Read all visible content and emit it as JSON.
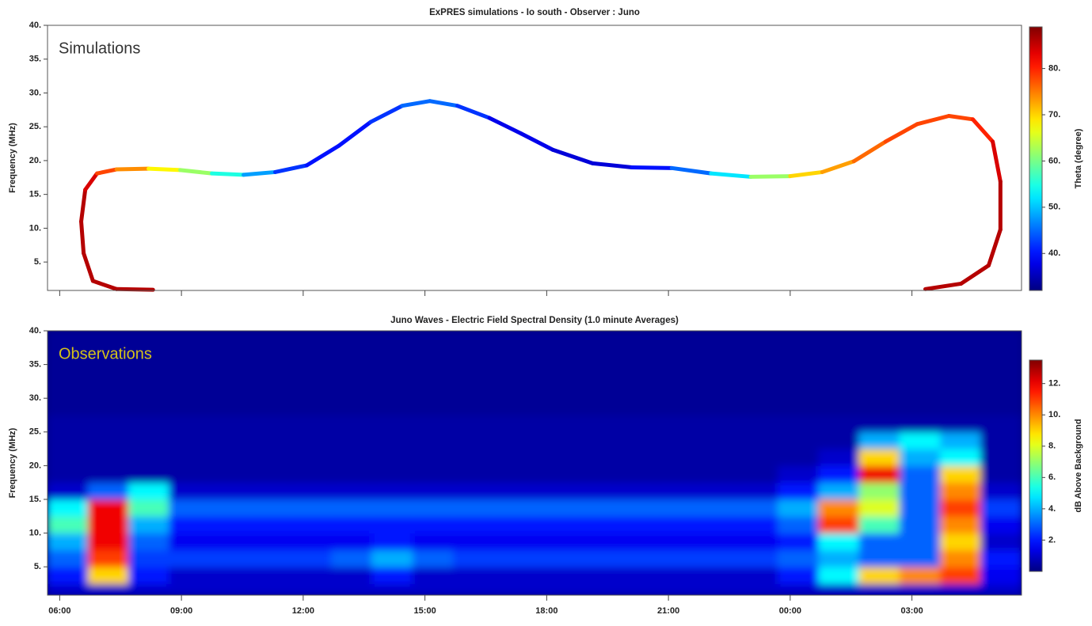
{
  "chart_data": [
    {
      "type": "curve",
      "title": "ExPRES simulations - Io south - Observer : Juno",
      "annotation": "Simulations",
      "ylabel": "Frequency (MHz)",
      "colormap": "jet",
      "xlim": [
        5.7,
        29.7
      ],
      "xticks": [
        6,
        9,
        12,
        15,
        18,
        21,
        24,
        27
      ],
      "ylim": [
        0.8,
        40
      ],
      "yticks": [
        {
          "value": 5,
          "label": "5."
        },
        {
          "value": 10,
          "label": "10."
        },
        {
          "value": 15,
          "label": "15."
        },
        {
          "value": 20,
          "label": "20."
        },
        {
          "value": 25,
          "label": "25."
        },
        {
          "value": 30,
          "label": "30."
        },
        {
          "value": 35,
          "label": "35."
        },
        {
          "value": 40,
          "label": "40."
        }
      ],
      "x": [
        8.3,
        7.4,
        6.82,
        6.59,
        6.53,
        6.63,
        6.92,
        7.4,
        8.19,
        8.97,
        9.75,
        10.53,
        11.31,
        12.09,
        12.88,
        13.66,
        14.44,
        15.12,
        15.8,
        16.59,
        17.37,
        18.15,
        19.13,
        20.1,
        21.08,
        22.05,
        23.03,
        24.0,
        24.79,
        25.57,
        26.35,
        27.13,
        27.91,
        28.5,
        28.99,
        29.18,
        29.18,
        28.89,
        28.21,
        27.33
      ],
      "y": [
        0.9,
        1.0,
        2.2,
        6.3,
        11,
        15.7,
        18.1,
        18.7,
        18.8,
        18.6,
        18.1,
        17.9,
        18.3,
        19.3,
        22.2,
        25.7,
        28.1,
        28.8,
        28.1,
        26.3,
        24,
        21.6,
        19.6,
        19,
        18.9,
        18.1,
        17.6,
        17.7,
        18.3,
        19.9,
        22.8,
        25.4,
        26.6,
        26.1,
        22.8,
        16.9,
        9.8,
        4.5,
        1.8,
        1.0
      ],
      "theta": [
        86,
        86,
        86,
        86,
        86,
        84,
        78,
        74,
        68,
        62,
        55,
        48,
        42,
        40,
        40,
        42,
        45,
        45,
        42,
        38,
        38,
        37,
        37,
        40,
        45,
        52,
        62,
        70,
        73,
        76,
        78,
        78,
        78,
        80,
        84,
        86,
        86,
        86,
        86,
        86
      ],
      "colorbar": {
        "label": "Theta (degree)",
        "zlim": [
          32,
          89
        ],
        "zticks": [
          {
            "value": 40,
            "label": "40."
          },
          {
            "value": 50,
            "label": "50."
          },
          {
            "value": 60,
            "label": "60."
          },
          {
            "value": 70,
            "label": "70."
          },
          {
            "value": 80,
            "label": "80."
          }
        ]
      }
    },
    {
      "type": "spectrogram",
      "title": "Juno Waves - Electric Field Spectral Density (1.0 minute Averages)",
      "annotation": "Observations",
      "ylabel": "Frequency (MHz)",
      "colormap": "jet",
      "xlim": [
        5.7,
        29.7
      ],
      "xticks": [
        {
          "value": 6,
          "label": "06:00"
        },
        {
          "value": 9,
          "label": "09:00"
        },
        {
          "value": 12,
          "label": "12:00"
        },
        {
          "value": 15,
          "label": "15:00"
        },
        {
          "value": 18,
          "label": "18:00"
        },
        {
          "value": 21,
          "label": "21:00"
        },
        {
          "value": 24,
          "label": "00:00"
        },
        {
          "value": 27,
          "label": "03:00"
        }
      ],
      "ylim": [
        0.8,
        40
      ],
      "yticks": [
        {
          "value": 5,
          "label": "5."
        },
        {
          "value": 10,
          "label": "10."
        },
        {
          "value": 15,
          "label": "15."
        },
        {
          "value": 20,
          "label": "20."
        },
        {
          "value": 25,
          "label": "25."
        },
        {
          "value": 30,
          "label": "30."
        },
        {
          "value": 35,
          "label": "35."
        },
        {
          "value": 40,
          "label": "40."
        }
      ],
      "xbins": [
        5.7,
        6.7,
        7.7,
        8.7,
        9.7,
        10.7,
        11.7,
        12.7,
        13.7,
        14.7,
        15.7,
        16.7,
        17.7,
        18.7,
        19.7,
        20.7,
        21.7,
        22.7,
        23.7,
        24.7,
        25.7,
        26.7,
        27.7,
        28.7,
        29.7
      ],
      "ybins": [
        0.8,
        2.5,
        5,
        7.5,
        10,
        12.5,
        15,
        17.5,
        20,
        22.5,
        25,
        27.5,
        30,
        32.5,
        35,
        37.5,
        40
      ],
      "z": [
        [
          1,
          1,
          1,
          1,
          1,
          1,
          1,
          1,
          1,
          1,
          1,
          1,
          1,
          1,
          1,
          1,
          1,
          1,
          1,
          1,
          1,
          1,
          1,
          1
        ],
        [
          2,
          9,
          2,
          1,
          1,
          1,
          1,
          1,
          2,
          1,
          1,
          1,
          1,
          1,
          1,
          1,
          1,
          1,
          2,
          5,
          9,
          10,
          11,
          1.5
        ],
        [
          3,
          11,
          2.5,
          2.5,
          2.5,
          2.5,
          2.5,
          3,
          4,
          3,
          2.5,
          2.5,
          2.5,
          2.5,
          2.5,
          2.5,
          2.5,
          2.5,
          3,
          4,
          3,
          3,
          10,
          2
        ],
        [
          4,
          12,
          3,
          1.5,
          1.5,
          1.5,
          1.5,
          1.5,
          2,
          1.5,
          1.5,
          1.5,
          1.5,
          1.5,
          1.5,
          1.5,
          1.5,
          1.5,
          2,
          5,
          3,
          3,
          9,
          1
        ],
        [
          6,
          12,
          4,
          2,
          2,
          2,
          2,
          2,
          2,
          2,
          2,
          2,
          2,
          2,
          2,
          2,
          2,
          2,
          3,
          11,
          6,
          3,
          10,
          1.5
        ],
        [
          5,
          12,
          6,
          3,
          3,
          3,
          3,
          3,
          3,
          3,
          3,
          3,
          3,
          3,
          3,
          3,
          3,
          3,
          4,
          10,
          8,
          3,
          11,
          2.5
        ],
        [
          1,
          3,
          5,
          1,
          1,
          1,
          1,
          1,
          1,
          1,
          1,
          1,
          1,
          1,
          1,
          1,
          1,
          1,
          2,
          4,
          7,
          3,
          10,
          1
        ],
        [
          0.5,
          0.5,
          0.5,
          0.5,
          0.5,
          0.5,
          0.5,
          0.5,
          0.5,
          0.5,
          0.5,
          0.5,
          0.5,
          0.5,
          0.5,
          0.5,
          0.5,
          0.5,
          1,
          2,
          12,
          3,
          9,
          0.5
        ],
        [
          0.5,
          0.5,
          0.5,
          0.5,
          0.5,
          0.5,
          0.5,
          0.5,
          0.5,
          0.5,
          0.5,
          0.5,
          0.5,
          0.5,
          0.5,
          0.5,
          0.5,
          0.5,
          0.5,
          1,
          9,
          4,
          5,
          0.5
        ],
        [
          0.5,
          0.5,
          0.5,
          0.5,
          0.5,
          0.5,
          0.5,
          0.5,
          0.5,
          0.5,
          0.5,
          0.5,
          0.5,
          0.5,
          0.5,
          0.5,
          0.5,
          0.5,
          0.5,
          0.5,
          4,
          5,
          4,
          0.5
        ],
        [
          0.5,
          0.5,
          0.5,
          0.5,
          0.5,
          0.5,
          0.5,
          0.5,
          0.5,
          0.5,
          0.5,
          0.5,
          0.5,
          0.5,
          0.5,
          0.5,
          0.5,
          0.5,
          0.5,
          0.5,
          0.5,
          0.5,
          0.5,
          0.5
        ],
        [
          0.3,
          0.3,
          0.3,
          0.3,
          0.3,
          0.3,
          0.3,
          0.3,
          0.3,
          0.3,
          0.3,
          0.3,
          0.3,
          0.3,
          0.3,
          0.3,
          0.3,
          0.3,
          0.3,
          0.3,
          0.3,
          0.3,
          0.3,
          0.3
        ],
        [
          0.3,
          0.3,
          0.3,
          0.3,
          0.3,
          0.3,
          0.3,
          0.3,
          0.3,
          0.3,
          0.3,
          0.3,
          0.3,
          0.3,
          0.3,
          0.3,
          0.3,
          0.3,
          0.3,
          0.3,
          0.3,
          0.3,
          0.3,
          0.3
        ],
        [
          0.3,
          0.3,
          0.3,
          0.3,
          0.3,
          0.3,
          0.3,
          0.3,
          0.3,
          0.3,
          0.3,
          0.3,
          0.3,
          0.3,
          0.3,
          0.3,
          0.3,
          0.3,
          0.3,
          0.3,
          0.3,
          0.3,
          0.3,
          0.3
        ],
        [
          0.3,
          0.3,
          0.3,
          0.3,
          0.3,
          0.3,
          0.3,
          0.3,
          0.3,
          0.3,
          0.3,
          0.3,
          0.3,
          0.3,
          0.3,
          0.3,
          0.3,
          0.3,
          0.3,
          0.3,
          0.3,
          0.3,
          0.3,
          0.3
        ],
        [
          0.3,
          0.3,
          0.3,
          0.3,
          0.3,
          0.3,
          0.3,
          0.3,
          0.3,
          0.3,
          0.3,
          0.3,
          0.3,
          0.3,
          0.3,
          0.3,
          0.3,
          0.3,
          0.3,
          0.3,
          0.3,
          0.3,
          0.3,
          0.3
        ]
      ],
      "colorbar": {
        "label": "dB Above Background",
        "zlim": [
          0,
          13.5
        ],
        "zticks": [
          {
            "value": 2,
            "label": "2."
          },
          {
            "value": 4,
            "label": "4."
          },
          {
            "value": 6,
            "label": "6."
          },
          {
            "value": 8,
            "label": "8."
          },
          {
            "value": 10,
            "label": "10."
          },
          {
            "value": 12,
            "label": "12."
          }
        ]
      }
    }
  ]
}
